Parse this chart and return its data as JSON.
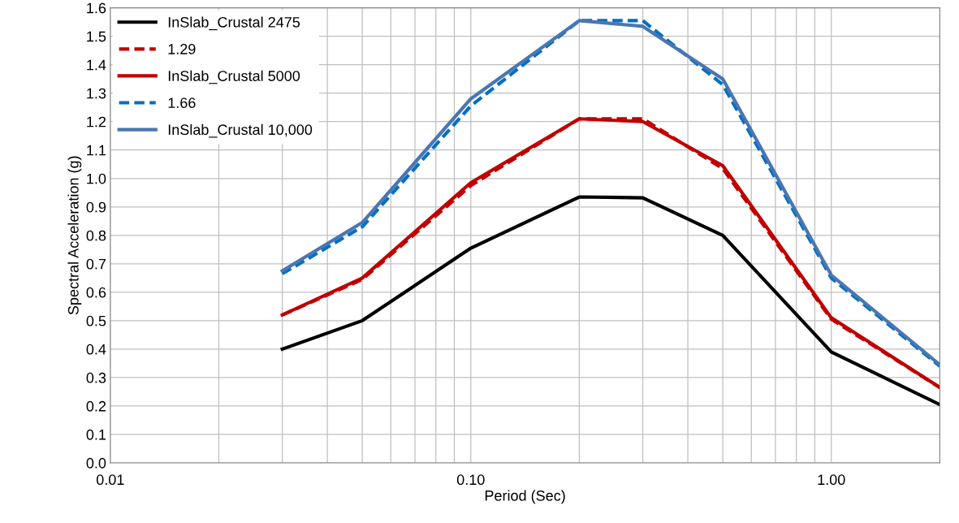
{
  "chart_data": {
    "type": "line",
    "xlabel": "Period (Sec)",
    "ylabel": "Spectral Acceleration (g)",
    "log": "x",
    "xlim": [
      0.01,
      2
    ],
    "ylim": [
      0,
      1.6
    ],
    "xticks": [
      {
        "value": 0.01,
        "label": "0.01"
      },
      {
        "value": 0.02,
        "label": null
      },
      {
        "value": 0.03,
        "label": null
      },
      {
        "value": 0.04,
        "label": null
      },
      {
        "value": 0.05,
        "label": null
      },
      {
        "value": 0.06,
        "label": null
      },
      {
        "value": 0.07,
        "label": null
      },
      {
        "value": 0.08,
        "label": null
      },
      {
        "value": 0.09,
        "label": null
      },
      {
        "value": 0.1,
        "label": "0.10"
      },
      {
        "value": 0.2,
        "label": null
      },
      {
        "value": 0.3,
        "label": null
      },
      {
        "value": 0.4,
        "label": null
      },
      {
        "value": 0.5,
        "label": null
      },
      {
        "value": 0.6,
        "label": null
      },
      {
        "value": 0.7,
        "label": null
      },
      {
        "value": 0.8,
        "label": null
      },
      {
        "value": 0.9,
        "label": null
      },
      {
        "value": 1,
        "label": "1.00"
      },
      {
        "value": 2,
        "label": null
      }
    ],
    "yticks": [
      {
        "value": 0,
        "label": "0.0"
      },
      {
        "value": 0.1,
        "label": "0.1"
      },
      {
        "value": 0.2,
        "label": "0.2"
      },
      {
        "value": 0.3,
        "label": "0.3"
      },
      {
        "value": 0.4,
        "label": "0.4"
      },
      {
        "value": 0.5,
        "label": "0.5"
      },
      {
        "value": 0.6,
        "label": "0.6"
      },
      {
        "value": 0.7,
        "label": "0.7"
      },
      {
        "value": 0.8,
        "label": "0.8"
      },
      {
        "value": 0.9,
        "label": "0.9"
      },
      {
        "value": 1,
        "label": "1.0"
      },
      {
        "value": 1.1,
        "label": "1.1"
      },
      {
        "value": 1.2,
        "label": "1.2"
      },
      {
        "value": 1.3,
        "label": "1.3"
      },
      {
        "value": 1.4,
        "label": "1.4"
      },
      {
        "value": 1.5,
        "label": "1.5"
      },
      {
        "value": 1.6,
        "label": "1.6"
      }
    ],
    "x": [
      0.03,
      0.05,
      0.1,
      0.2,
      0.3,
      0.5,
      1,
      2
    ],
    "grid": true,
    "legend": "top left",
    "marker": "none",
    "series": [
      {
        "name": "InSlab_Crustal 2475",
        "color": "#000000",
        "line_style": "solid",
        "values": [
          0.4,
          0.5,
          0.755,
          0.935,
          0.932,
          0.8,
          0.39,
          0.205
        ]
      },
      {
        "name": "1.29",
        "color": "#c00000",
        "line_style": "dashed",
        "values": [
          0.52,
          0.645,
          0.975,
          1.21,
          1.21,
          1.035,
          0.505,
          0.265
        ]
      },
      {
        "name": "InSlab_Crustal 5000",
        "color": "#c00000",
        "line_style": "solid",
        "values": [
          0.52,
          0.65,
          0.985,
          1.21,
          1.2,
          1.045,
          0.51,
          0.265
        ]
      },
      {
        "name": "1.66",
        "color": "#0070c0",
        "line_style": "dashed",
        "values": [
          0.665,
          0.83,
          1.255,
          1.555,
          1.555,
          1.33,
          0.65,
          0.34
        ]
      },
      {
        "name": "InSlab_Crustal 10,000",
        "color": "#4a76b2",
        "line_style": "solid",
        "values": [
          0.675,
          0.845,
          1.28,
          1.555,
          1.535,
          1.35,
          0.66,
          0.345
        ]
      }
    ]
  }
}
